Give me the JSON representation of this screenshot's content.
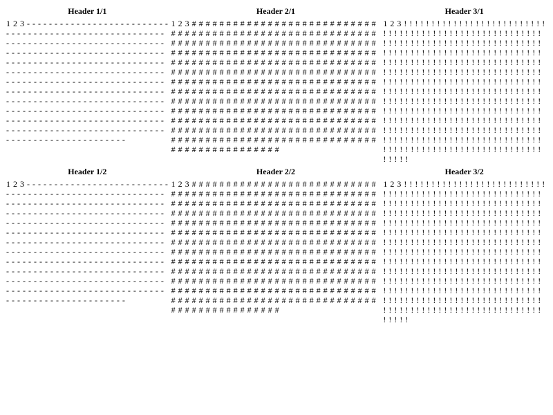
{
  "table": {
    "groups": [
      {
        "headers": [
          "Header 1/1",
          "Header 2/1",
          "Header 3/1"
        ]
      },
      {
        "headers": [
          "Header 1/2",
          "Header 2/2",
          "Header 3/2"
        ]
      }
    ],
    "cell_pattern": {
      "prefix": "1 2 3 ",
      "column_fill_chars": [
        "-",
        "#",
        "!"
      ],
      "column_fill_counts": [
        367,
        403,
        408
      ]
    }
  }
}
